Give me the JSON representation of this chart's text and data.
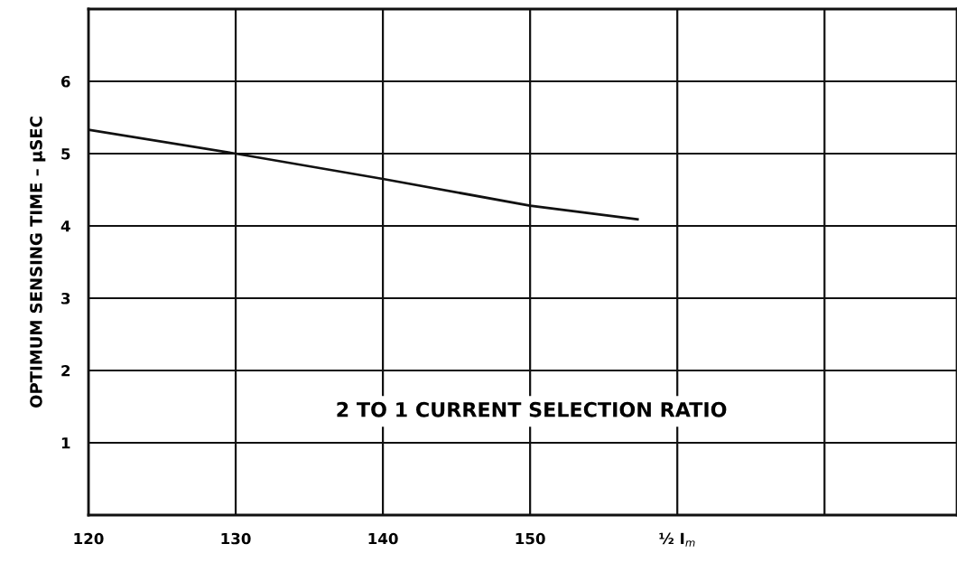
{
  "chart_data": {
    "type": "line",
    "ylabel": "OPTIMUM SENSING TIME – μSEC",
    "annotations": [
      "2 TO 1 CURRENT SELECTION RATIO"
    ],
    "x": [
      120,
      130,
      140,
      150,
      157.3
    ],
    "series": [
      {
        "color": "#111111",
        "values": [
          5.33,
          5.0,
          4.65,
          4.28,
          4.09
        ]
      }
    ],
    "xlim": [
      120,
      179
    ],
    "ylim": [
      0,
      7
    ],
    "xticks": [
      120,
      130,
      140,
      150,
      {
        "value": 160,
        "label": "½ I$_{m}$"
      },
      {
        "value": 170,
        "label": null
      }
    ],
    "yticks": [
      1,
      2,
      3,
      4,
      5,
      6
    ],
    "grid": true,
    "marker": "none",
    "line_style": "solid"
  }
}
